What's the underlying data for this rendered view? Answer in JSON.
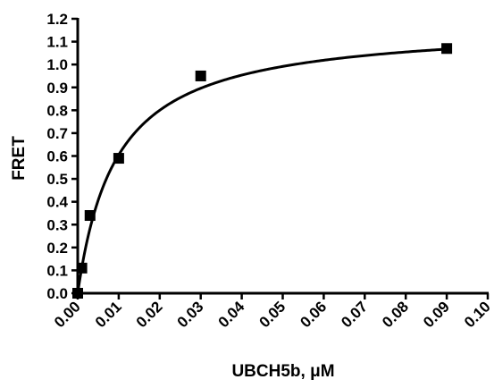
{
  "chart_data": {
    "type": "scatter",
    "xlabel": "UBCH5b, μM",
    "ylabel": "FRET",
    "xlim": [
      0,
      0.1
    ],
    "ylim": [
      0,
      1.2
    ],
    "xticks": [
      "0.00",
      "0.01",
      "0.02",
      "0.03",
      "0.04",
      "0.05",
      "0.06",
      "0.07",
      "0.08",
      "0.09",
      "0.10"
    ],
    "yticks": [
      "0.0",
      "0.1",
      "0.2",
      "0.3",
      "0.4",
      "0.5",
      "0.6",
      "0.7",
      "0.8",
      "0.9",
      "1.0",
      "1.1",
      "1.2"
    ],
    "grid": false,
    "series": [
      {
        "marker": "square",
        "color": "#000000",
        "x": [
          0.0,
          0.001,
          0.003,
          0.01,
          0.03,
          0.09
        ],
        "y": [
          0.0,
          0.11,
          0.34,
          0.59,
          0.95,
          1.07
        ]
      }
    ],
    "fit_curve": {
      "model": "hyperbolic",
      "bmax": 1.18,
      "kd": 0.0095,
      "color": "#000000"
    }
  }
}
